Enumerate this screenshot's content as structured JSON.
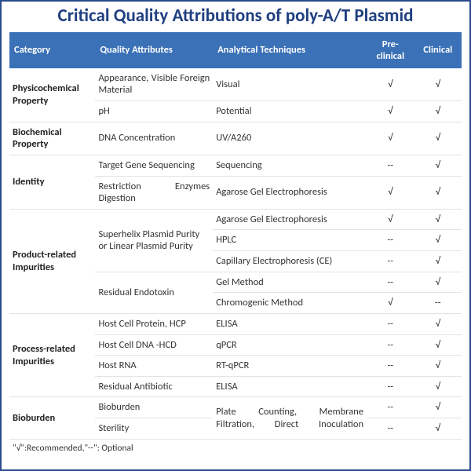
{
  "title": "Critical Quality Attributions of poly-A/T Plasmid",
  "title_color": "#1f3f80",
  "title_fontsize": 23,
  "header_bg": "#3b71b6",
  "columns": [
    "Category",
    "Quality Attributes",
    "Analytical Techniques",
    "Pre-clinical",
    "Clinical"
  ],
  "mark_recommended": "√",
  "mark_optional": "--",
  "legend": "\"√\":Recommended,\"--\": Optional",
  "rows": [
    {
      "cat": "Physicochemical Property",
      "cat_rowspan": 2,
      "qa": "Appearance, Visible Foreign Material",
      "qa_just": true,
      "tech": "Visual",
      "pre": "√",
      "cli": "√"
    },
    {
      "qa": "pH",
      "tech": "Potential",
      "pre": "√",
      "cli": "√"
    },
    {
      "cat": "Biochemical Property",
      "cat_rowspan": 1,
      "qa": "DNA Concentration",
      "tech": "UV/A260",
      "pre": "√",
      "cli": "√"
    },
    {
      "cat": "Identity",
      "cat_rowspan": 2,
      "qa": "Target Gene Sequencing",
      "tech": "Sequencing",
      "pre": "--",
      "cli": "√"
    },
    {
      "qa": "Restriction Enzymes Digestion",
      "qa_just": true,
      "tech": "Agarose Gel Electrophoresis",
      "pre": "√",
      "cli": "√"
    },
    {
      "cat": "Product-related Impurities",
      "cat_rowspan": 5,
      "qa": "Superhelix Plasmid Purity or Linear Plasmid Purity",
      "qa_rowspan": 3,
      "tech": "Agarose Gel Electrophoresis",
      "pre": "√",
      "cli": "√"
    },
    {
      "tech": "HPLC",
      "pre": "--",
      "cli": "√"
    },
    {
      "tech": "Capillary Electrophoresis (CE)",
      "pre": "--",
      "cli": "√"
    },
    {
      "qa": "Residual Endotoxin",
      "qa_rowspan": 2,
      "tech": "Gel Method",
      "pre": "--",
      "cli": "√"
    },
    {
      "tech": "Chromogenic Method",
      "pre": "√",
      "cli": "--"
    },
    {
      "cat": "Process-related Impurities",
      "cat_rowspan": 4,
      "qa": "Host Cell Protein, HCP",
      "tech": "ELISA",
      "pre": "--",
      "cli": "√"
    },
    {
      "qa": "Host Cell DNA -HCD",
      "tech": "qPCR",
      "pre": "--",
      "cli": "√"
    },
    {
      "qa": "Host RNA",
      "tech": "RT-qPCR",
      "pre": "--",
      "cli": "√"
    },
    {
      "qa": "Residual Antibiotic",
      "tech": "ELISA",
      "pre": "--",
      "cli": "√"
    },
    {
      "cat": "Bioburden",
      "cat_rowspan": 2,
      "qa": "Bioburden",
      "tech": "Plate Counting, Membrane Filtration, Direct Inoculation",
      "tech_rowspan": 2,
      "tech_just": true,
      "pre": "--",
      "cli": "√"
    },
    {
      "qa": "Sterility",
      "pre": "--",
      "cli": "√"
    }
  ]
}
